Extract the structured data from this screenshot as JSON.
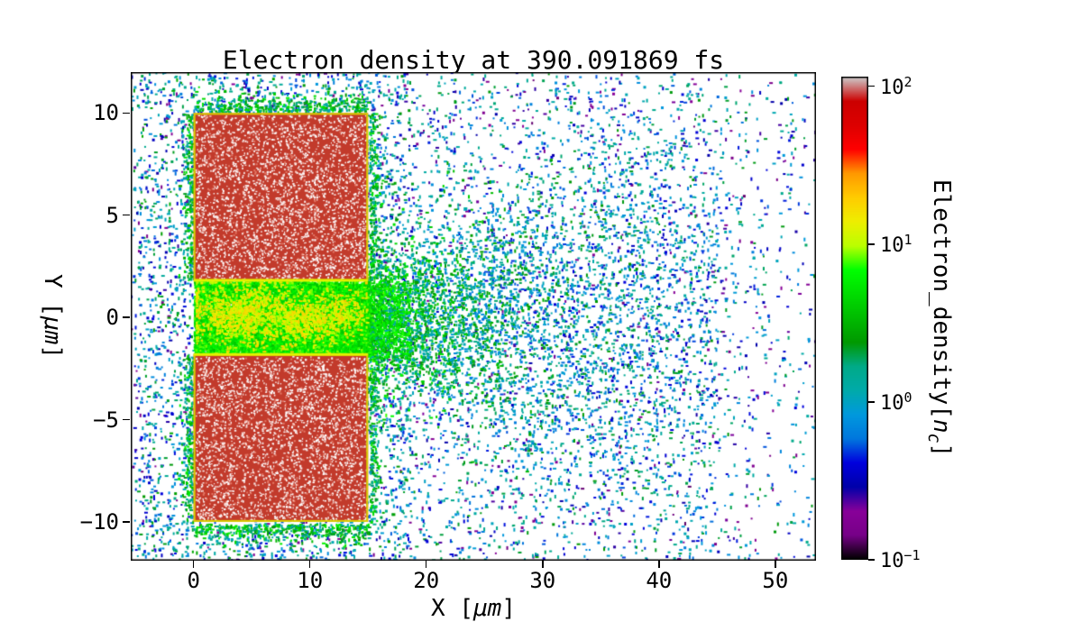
{
  "chart_data": {
    "type": "heatmap",
    "title": "Electron_density at 390.091869 fs",
    "time_fs": 390.091869,
    "xlabel": "X [μm]",
    "ylabel": "Y [μm]",
    "xlabel_parts": {
      "prefix": "X [",
      "unit": "μm",
      "suffix": "]"
    },
    "ylabel_parts": {
      "prefix": "Y [",
      "unit": "μm",
      "suffix": "]"
    },
    "xlim": [
      -5.4,
      53.5
    ],
    "ylim": [
      -11.9,
      12.0
    ],
    "xticks": {
      "values": [
        0,
        10,
        20,
        30,
        40,
        50
      ],
      "labels": [
        "0",
        "10",
        "20",
        "30",
        "40",
        "50"
      ]
    },
    "yticks": {
      "values": [
        10,
        5,
        0,
        -5,
        -10
      ],
      "labels": [
        "10",
        "5",
        "0",
        "−5",
        "−10"
      ]
    },
    "grid": false,
    "color_scale": "log",
    "colormap": "nipy_spectral",
    "vmin": 0.1,
    "vmax": 115,
    "colorbar": {
      "label": "Electron_density[nc]",
      "label_parts": {
        "prefix": "Electron_density[",
        "var": "n",
        "sub": "c",
        "suffix": "]"
      },
      "position": "right",
      "ticks": [
        {
          "base": "10",
          "exp": "2",
          "value": 100
        },
        {
          "base": "10",
          "exp": "1",
          "value": 10
        },
        {
          "base": "10",
          "exp": "0",
          "value": 1
        },
        {
          "base": "10",
          "exp": "−1",
          "value": 0.1
        }
      ]
    },
    "regions": [
      {
        "name": "upper-target-slab",
        "x": [
          0,
          15
        ],
        "y": [
          1.8,
          10
        ],
        "density_nc": 100
      },
      {
        "name": "lower-target-slab",
        "x": [
          0,
          15
        ],
        "y": [
          -10,
          -1.8
        ],
        "density_nc": 100
      },
      {
        "name": "channel",
        "x": [
          0,
          15
        ],
        "y": [
          -1.8,
          1.8
        ],
        "density_nc": 6,
        "hotspot_density_nc": 15
      },
      {
        "name": "exit-plume",
        "x": [
          15,
          40
        ],
        "y": [
          -6,
          6
        ],
        "density_nc": 1.5
      },
      {
        "name": "background-scatter",
        "x": [
          -5.4,
          53.5
        ],
        "y": [
          -11.9,
          12
        ],
        "density_nc": 0.5
      }
    ]
  },
  "colors": {
    "background": "#ffffff",
    "axes": "#000000",
    "target_red": "#c23a2b",
    "channel_green": "#21a62a",
    "hotspot_yellow": "#e0e000",
    "plume_teal": "#13a0a0",
    "scatter_blue": "#1b63c8",
    "scatter_purple": "#7a00a0",
    "block_outline_yellow": "#d8cf00"
  }
}
